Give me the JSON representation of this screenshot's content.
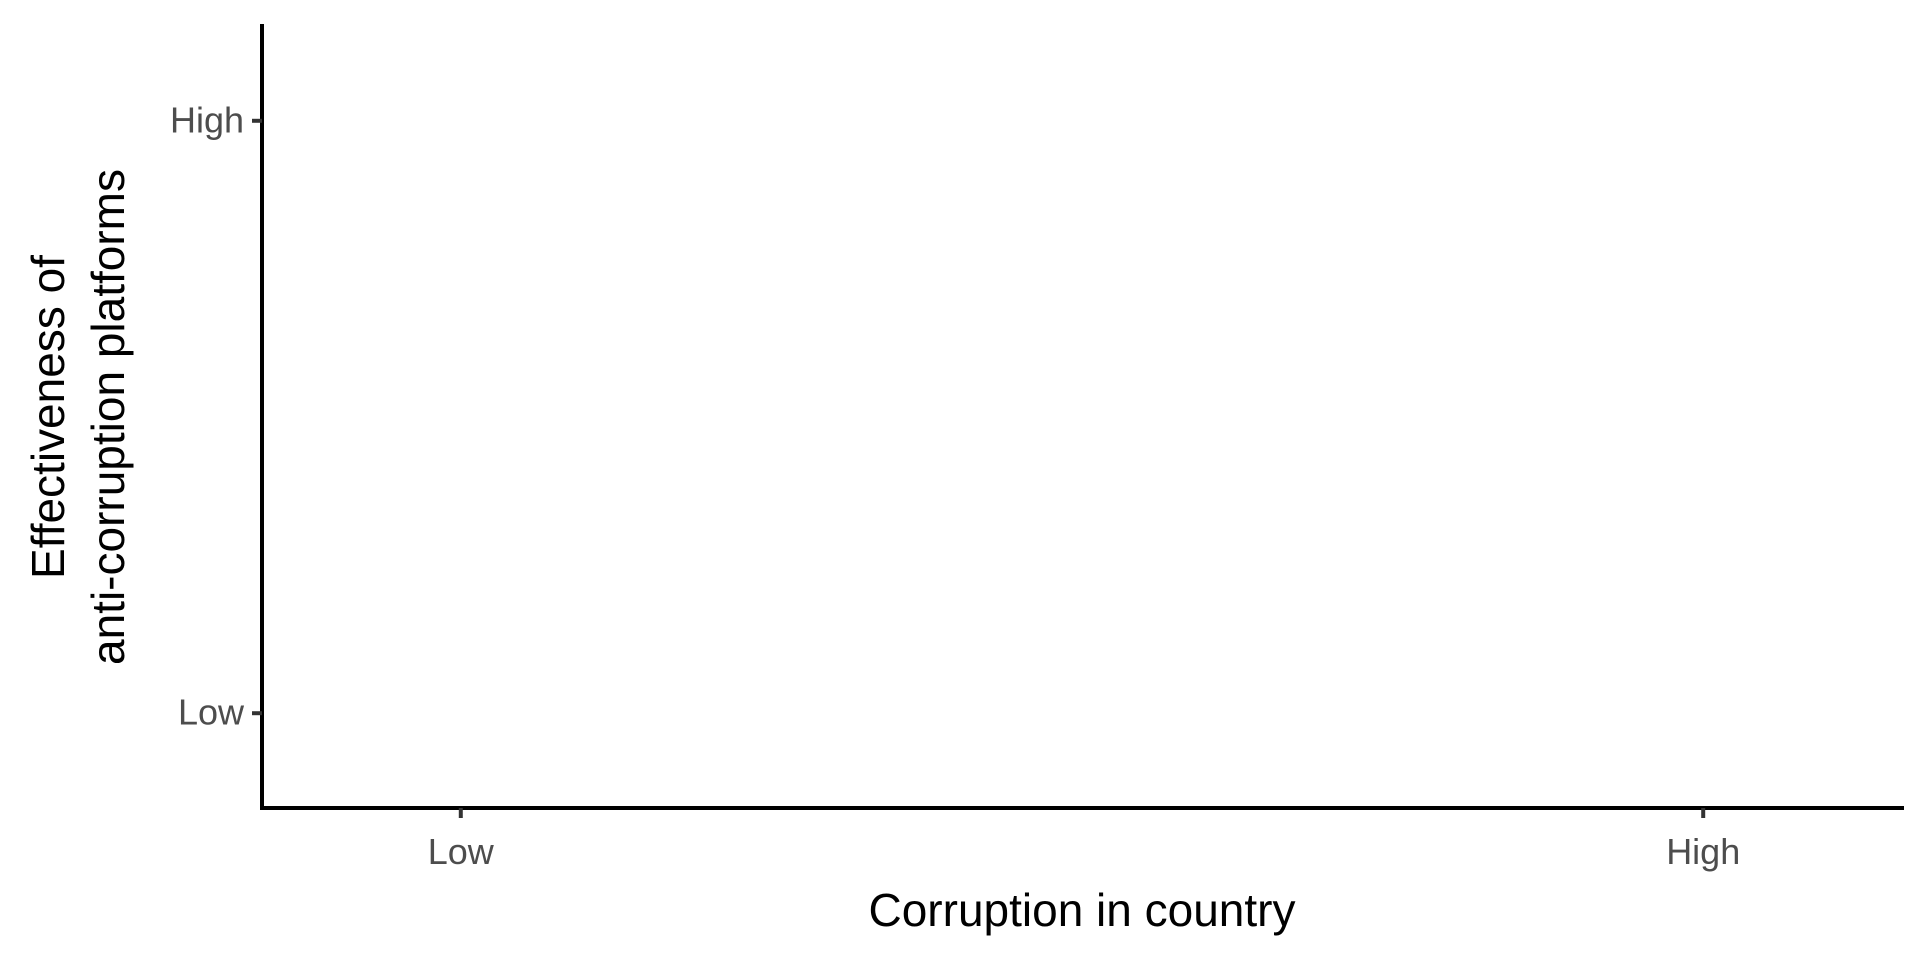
{
  "chart_data": {
    "type": "line",
    "title": "",
    "xlabel": "Corruption in country",
    "ylabel_lines": [
      "Effectiveness of",
      "anti-corruption platforms"
    ],
    "x_ticks": [
      "Low",
      "High"
    ],
    "y_ticks": [
      "Low",
      "High"
    ],
    "xlim": [
      -0.16,
      1.16
    ],
    "ylim": [
      -0.16,
      1.16
    ],
    "series": [],
    "grid": false,
    "legend": "none"
  }
}
